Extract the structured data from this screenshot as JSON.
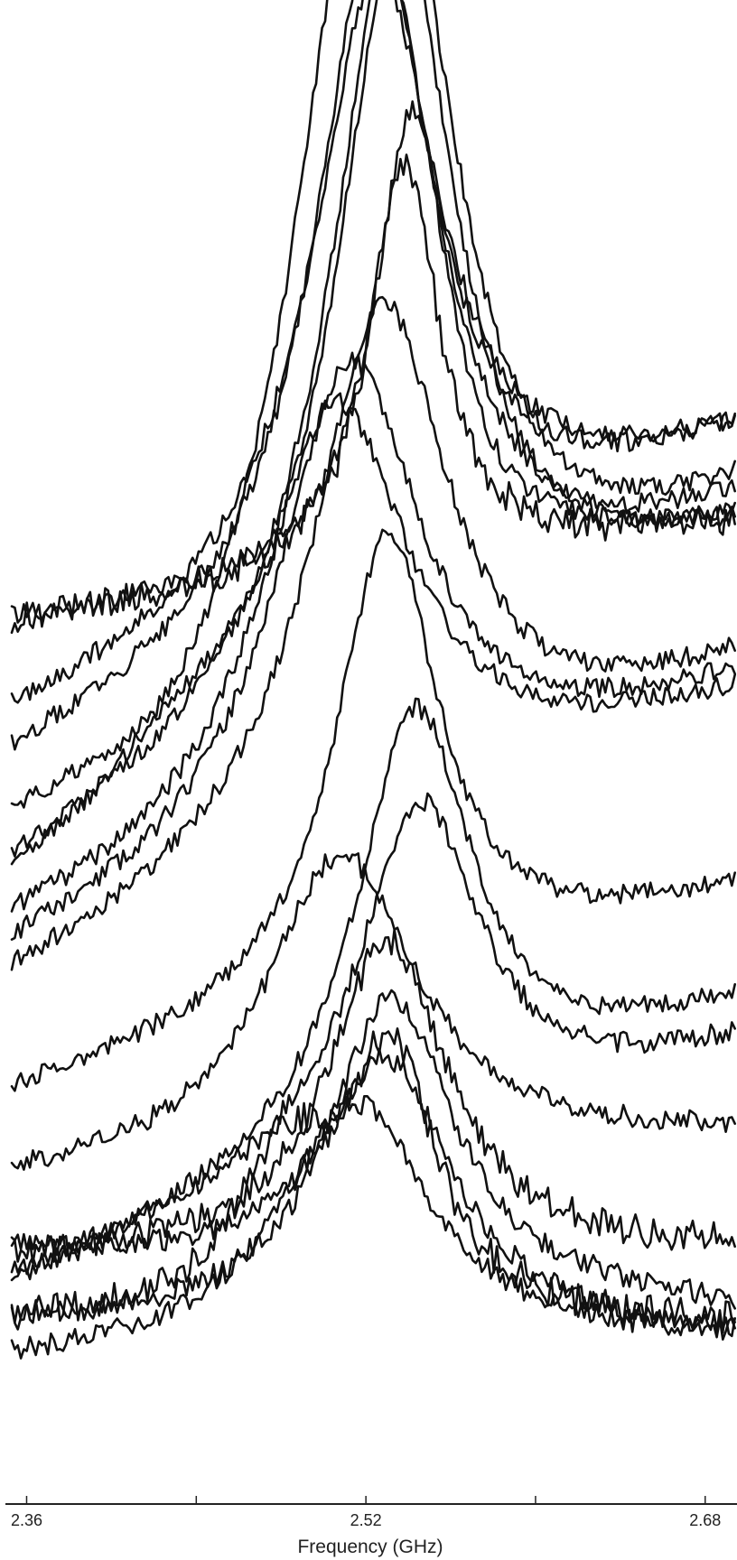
{
  "chart_data": {
    "type": "line",
    "title": "",
    "xlabel": "Frequency (GHz)",
    "ylabel": "",
    "xlim": [
      2.35,
      2.695
    ],
    "xticks": [
      2.36,
      2.44,
      2.52,
      2.6,
      2.68
    ],
    "xtick_labels": [
      "2.36",
      "",
      "2.52",
      "",
      "2.68"
    ],
    "grid": false,
    "legend": "none",
    "line_color": "#111111",
    "series": [
      {
        "peak_x": 2.518,
        "width": 0.04,
        "baseline_left": 0.6,
        "baseline_right": 1.08,
        "amplitude": 1.06,
        "bump": 0.0,
        "noise": 0.012
      },
      {
        "peak_x": 2.535,
        "width": 0.036,
        "baseline_left": 0.64,
        "baseline_right": 1.1,
        "amplitude": 0.98,
        "bump": 0.0,
        "noise": 0.012
      },
      {
        "peak_x": 2.535,
        "width": 0.034,
        "baseline_left": 0.7,
        "baseline_right": 1.06,
        "amplitude": 0.92,
        "bump": 0.0,
        "noise": 0.011
      },
      {
        "peak_x": 2.524,
        "width": 0.034,
        "baseline_left": 0.78,
        "baseline_right": 1.18,
        "amplitude": 0.83,
        "bump": 0.0,
        "noise": 0.012
      },
      {
        "peak_x": 2.525,
        "width": 0.036,
        "baseline_left": 0.83,
        "baseline_right": 1.18,
        "amplitude": 0.75,
        "bump": 0.0,
        "noise": 0.012
      },
      {
        "peak_x": 2.542,
        "width": 0.022,
        "baseline_left": 0.96,
        "baseline_right": 1.08,
        "amplitude": 0.56,
        "bump": 0.0,
        "noise": 0.013
      },
      {
        "peak_x": 2.538,
        "width": 0.02,
        "baseline_left": 0.96,
        "baseline_right": 1.08,
        "amplitude": 0.5,
        "bump": 0.0,
        "noise": 0.02
      },
      {
        "peak_x": 2.527,
        "width": 0.04,
        "baseline_left": 0.51,
        "baseline_right": 0.9,
        "amplitude": 0.64,
        "bump": 0.0,
        "noise": 0.012
      },
      {
        "peak_x": 2.512,
        "width": 0.042,
        "baseline_left": 0.54,
        "baseline_right": 0.88,
        "amplitude": 0.58,
        "bump": 0.0,
        "noise": 0.012
      },
      {
        "peak_x": 2.505,
        "width": 0.044,
        "baseline_left": 0.57,
        "baseline_right": 0.86,
        "amplitude": 0.53,
        "bump": 0.0,
        "noise": 0.012
      },
      {
        "peak_x": 2.53,
        "width": 0.03,
        "baseline_left": 0.38,
        "baseline_right": 0.63,
        "amplitude": 0.56,
        "bump": 0.0,
        "noise": 0.012
      },
      {
        "peak_x": 2.543,
        "width": 0.034,
        "baseline_left": 0.14,
        "baseline_right": 0.49,
        "amplitude": 0.52,
        "bump": 0.0,
        "noise": 0.012
      },
      {
        "peak_x": 2.545,
        "width": 0.036,
        "baseline_left": 0.15,
        "baseline_right": 0.44,
        "amplitude": 0.43,
        "bump": 0.0,
        "noise": 0.013
      },
      {
        "peak_x": 2.508,
        "width": 0.044,
        "baseline_left": 0.27,
        "baseline_right": 0.33,
        "amplitude": 0.38,
        "bump": 0.0,
        "noise": 0.013
      },
      {
        "peak_x": 2.53,
        "width": 0.034,
        "baseline_left": 0.18,
        "baseline_right": 0.19,
        "amplitude": 0.39,
        "bump": 0.0,
        "noise": 0.02
      },
      {
        "peak_x": 2.532,
        "width": 0.026,
        "baseline_left": 0.1,
        "baseline_right": 0.1,
        "amplitude": 0.31,
        "bump": 0.18,
        "noise": 0.02
      },
      {
        "peak_x": 2.533,
        "width": 0.034,
        "baseline_left": 0.19,
        "baseline_right": 0.12,
        "amplitude": 0.35,
        "bump": 0.0,
        "noise": 0.014
      },
      {
        "peak_x": 2.528,
        "width": 0.04,
        "baseline_left": 0.1,
        "baseline_right": 0.08,
        "amplitude": 0.34,
        "bump": 0.0,
        "noise": 0.014
      },
      {
        "peak_x": 2.515,
        "width": 0.044,
        "baseline_left": 0.05,
        "baseline_right": 0.08,
        "amplitude": 0.31,
        "bump": 0.0,
        "noise": 0.014
      }
    ]
  }
}
